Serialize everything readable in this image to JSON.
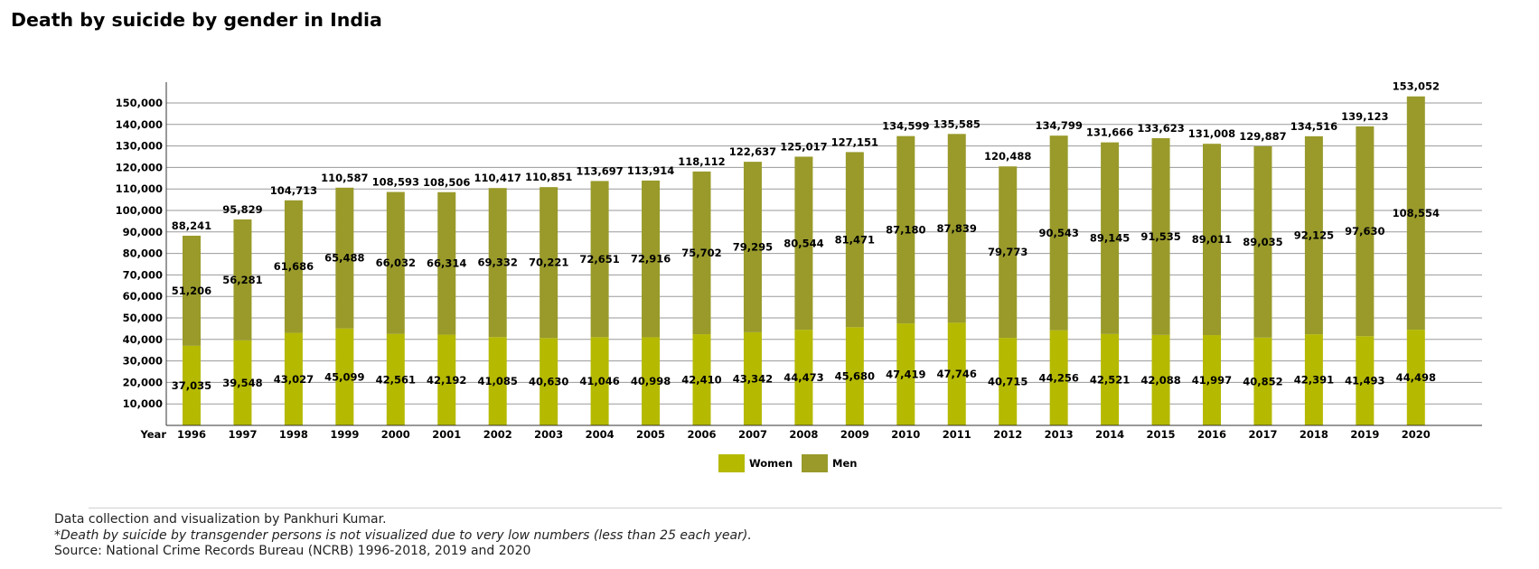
{
  "title": "Death by suicide by gender in India",
  "footer": {
    "credit": "Data collection and visualization by Pankhuri Kumar.",
    "note": "*Death by suicide by transgender persons is not visualized due to very low numbers (less than 25 each year).",
    "source": "Source: National Crime Records Bureau (NCRB) 1996-2018, 2019 and 2020"
  },
  "chart_data": {
    "type": "bar",
    "stacked": true,
    "title": "Death by suicide by gender in India",
    "xlabel": "Year",
    "ylabel": "",
    "ylim": [
      0,
      160000
    ],
    "grid": true,
    "legend_position": "bottom-center",
    "categories": [
      "1996",
      "1997",
      "1998",
      "1999",
      "2000",
      "2001",
      "2002",
      "2003",
      "2004",
      "2005",
      "2006",
      "2007",
      "2008",
      "2009",
      "2010",
      "2011",
      "2012",
      "2013",
      "2014",
      "2015",
      "2016",
      "2017",
      "2018",
      "2019",
      "2020"
    ],
    "yticks": [
      10000,
      20000,
      30000,
      40000,
      50000,
      60000,
      70000,
      80000,
      90000,
      100000,
      110000,
      120000,
      130000,
      140000,
      150000
    ],
    "series": [
      {
        "name": "Women",
        "color": "#b5b900",
        "values": [
          37035,
          39548,
          43027,
          45099,
          42561,
          42192,
          41085,
          40630,
          41046,
          40998,
          42410,
          43342,
          44473,
          45680,
          47419,
          47746,
          40715,
          44256,
          42521,
          42088,
          41997,
          40852,
          42391,
          41493,
          44498
        ]
      },
      {
        "name": "Men",
        "color": "#999a2a",
        "values": [
          51206,
          56281,
          61686,
          65488,
          66032,
          66314,
          69332,
          70221,
          72651,
          72916,
          75702,
          79295,
          80544,
          81471,
          87180,
          87839,
          79773,
          90543,
          89145,
          91535,
          89011,
          89035,
          92125,
          97630,
          108554
        ]
      }
    ],
    "totals": [
      88241,
      95829,
      104713,
      110587,
      108593,
      108506,
      110417,
      110851,
      113697,
      113914,
      118112,
      122637,
      125017,
      127151,
      134599,
      135585,
      120488,
      134799,
      131666,
      133623,
      131008,
      129887,
      134516,
      139123,
      153052
    ]
  }
}
